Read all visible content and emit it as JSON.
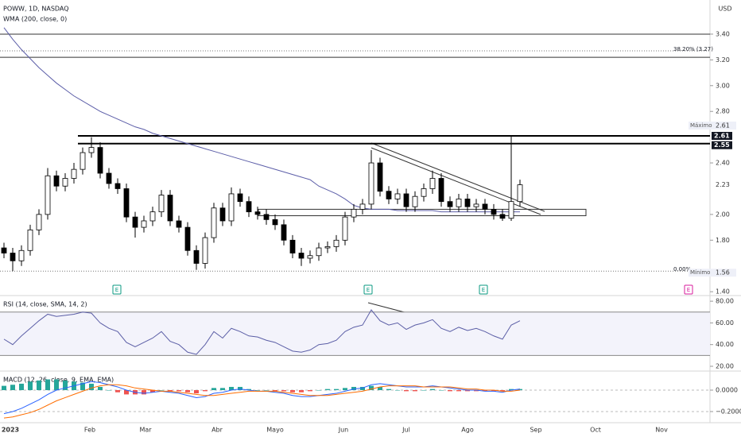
{
  "header": {
    "symbol": "POWW, 1D, NASDAQ",
    "currency": "USD"
  },
  "x_axis": {
    "labels": [
      "2023",
      "Feb",
      "Mar",
      "Abr",
      "Mayo",
      "Jun",
      "Jul",
      "Ago",
      "Sep",
      "Oct",
      "Nov"
    ]
  },
  "chart_data": [
    {
      "type": "candlestick",
      "indicator": "WMA (200, close, 0)",
      "up_color": "#ffffff",
      "down_color": "#000000",
      "open": [
        1.74,
        1.7,
        1.64,
        1.72,
        1.88,
        2.0,
        2.3,
        2.22,
        2.28,
        2.35,
        2.48,
        2.52,
        2.32,
        2.24,
        2.2,
        1.98,
        1.9,
        1.95,
        2.02,
        2.15,
        1.95,
        1.9,
        1.72,
        1.62,
        1.82,
        2.05,
        1.95,
        2.16,
        2.1,
        2.02,
        2.0,
        1.96,
        1.92,
        1.8,
        1.7,
        1.66,
        1.68,
        1.74,
        1.75,
        1.8,
        1.98,
        2.04,
        2.08,
        2.4,
        2.18,
        2.12,
        2.16,
        2.06,
        2.14,
        2.2,
        2.28,
        2.1,
        2.06,
        2.12,
        2.06,
        2.08,
        2.04,
        2.0,
        1.97,
        2.1
      ],
      "high": [
        1.78,
        1.74,
        1.76,
        1.92,
        2.04,
        2.36,
        2.34,
        2.32,
        2.4,
        2.52,
        2.6,
        2.56,
        2.36,
        2.28,
        2.24,
        2.02,
        1.99,
        2.06,
        2.19,
        2.19,
        1.99,
        1.94,
        1.76,
        1.86,
        2.09,
        2.09,
        2.21,
        2.2,
        2.14,
        2.06,
        2.04,
        2.0,
        1.96,
        1.84,
        1.74,
        1.72,
        1.78,
        1.79,
        1.84,
        2.02,
        2.08,
        2.12,
        2.5,
        2.44,
        2.22,
        2.2,
        2.2,
        2.18,
        2.24,
        2.34,
        2.32,
        2.14,
        2.16,
        2.16,
        2.12,
        2.12,
        2.08,
        2.04,
        2.61,
        2.27
      ],
      "low": [
        1.66,
        1.56,
        1.6,
        1.68,
        1.84,
        1.96,
        2.18,
        2.18,
        2.24,
        2.31,
        2.44,
        2.28,
        2.2,
        2.16,
        1.94,
        1.82,
        1.86,
        1.91,
        1.98,
        1.91,
        1.86,
        1.68,
        1.57,
        1.58,
        1.78,
        1.91,
        1.91,
        2.06,
        1.98,
        1.96,
        1.92,
        1.88,
        1.76,
        1.66,
        1.6,
        1.62,
        1.64,
        1.7,
        1.71,
        1.76,
        1.94,
        2.0,
        2.04,
        2.14,
        2.08,
        2.08,
        2.02,
        2.02,
        2.1,
        2.16,
        2.06,
        2.02,
        2.02,
        2.02,
        2.02,
        2.0,
        1.96,
        1.95,
        1.95,
        2.06
      ],
      "close": [
        1.7,
        1.64,
        1.72,
        1.88,
        2.0,
        2.3,
        2.22,
        2.28,
        2.35,
        2.48,
        2.52,
        2.32,
        2.24,
        2.2,
        1.98,
        1.9,
        1.95,
        2.02,
        2.15,
        1.95,
        1.9,
        1.72,
        1.62,
        1.82,
        2.05,
        1.95,
        2.16,
        2.1,
        2.02,
        2.0,
        1.96,
        1.92,
        1.8,
        1.7,
        1.66,
        1.68,
        1.74,
        1.75,
        1.8,
        1.98,
        2.04,
        2.08,
        2.4,
        2.18,
        2.12,
        2.16,
        2.06,
        2.14,
        2.2,
        2.28,
        2.1,
        2.06,
        2.12,
        2.06,
        2.08,
        2.04,
        2.0,
        1.97,
        2.1,
        2.23
      ],
      "wma": {
        "color": "#5c5ea8",
        "values": [
          3.45,
          3.36,
          3.28,
          3.21,
          3.14,
          3.08,
          3.02,
          2.97,
          2.92,
          2.88,
          2.84,
          2.8,
          2.77,
          2.74,
          2.71,
          2.68,
          2.66,
          2.63,
          2.61,
          2.59,
          2.57,
          2.55,
          2.53,
          2.51,
          2.49,
          2.47,
          2.45,
          2.43,
          2.41,
          2.39,
          2.37,
          2.35,
          2.33,
          2.31,
          2.29,
          2.27,
          2.22,
          2.19,
          2.16,
          2.12,
          2.07,
          2.05,
          2.04,
          2.04,
          2.04,
          2.03,
          2.03,
          2.03,
          2.03,
          2.03,
          2.02,
          2.02,
          2.02,
          2.02,
          2.02,
          2.02,
          2.02,
          2.02,
          2.02,
          2.02
        ]
      },
      "ylim": [
        1.37,
        3.665
      ],
      "yticks": [
        {
          "value": 1.4,
          "label": "1.40"
        },
        {
          "value": 1.8,
          "label": "1.80"
        },
        {
          "value": 2.0,
          "label": "2.00"
        },
        {
          "value": 2.4,
          "label": "2.40"
        },
        {
          "value": 2.8,
          "label": "2.80"
        },
        {
          "value": 3.0,
          "label": "3.00"
        },
        {
          "value": 3.2,
          "label": "3.20"
        },
        {
          "value": 3.4,
          "label": "3.40"
        }
      ],
      "thin_lines": [
        3.4,
        3.22
      ],
      "zone": [
        2.61,
        2.55
      ],
      "range_box": [
        2.04,
        1.99
      ],
      "fib_levels": [
        {
          "label": "38.20% (3.27)",
          "value": 3.27
        },
        {
          "label": "0.00%",
          "value": 1.56
        }
      ],
      "extremes": [
        {
          "label": "Máximo",
          "value": 2.61
        },
        {
          "label": "Mínimo",
          "value": 1.56
        }
      ],
      "last_price": 2.23,
      "events": [
        "E",
        "E",
        "E",
        "E"
      ]
    },
    {
      "type": "line",
      "title": "RSI (14, close, SMA, 14, 2)",
      "color": "#5b5ea6",
      "values": [
        45,
        40,
        48,
        55,
        62,
        68,
        66,
        67,
        68,
        70,
        69,
        60,
        55,
        52,
        42,
        38,
        42,
        46,
        52,
        43,
        40,
        33,
        31,
        40,
        52,
        46,
        55,
        52,
        48,
        47,
        44,
        42,
        38,
        34,
        33,
        35,
        40,
        41,
        44,
        52,
        56,
        58,
        72,
        62,
        58,
        60,
        54,
        58,
        60,
        63,
        55,
        52,
        56,
        53,
        55,
        52,
        48,
        45,
        58,
        62
      ],
      "bands": [
        70,
        30
      ],
      "ylim": [
        15.6,
        85.2
      ],
      "yticks": [
        {
          "value": 80,
          "label": "80.00"
        },
        {
          "value": 60,
          "label": "60.00"
        },
        {
          "value": 40,
          "label": "40.00"
        },
        {
          "value": 20,
          "label": "20.00"
        }
      ]
    },
    {
      "type": "macd",
      "title": "MACD (12, 26, close, 9, EMA, EMA)",
      "series": [
        {
          "name": "MACD",
          "color": "#2962ff",
          "values": [
            -0.22,
            -0.2,
            -0.17,
            -0.13,
            -0.09,
            -0.04,
            0.0,
            0.02,
            0.04,
            0.06,
            0.08,
            0.07,
            0.05,
            0.03,
            0.0,
            -0.02,
            -0.03,
            -0.02,
            -0.01,
            -0.02,
            -0.03,
            -0.05,
            -0.07,
            -0.06,
            -0.03,
            -0.02,
            0.0,
            0.01,
            0.0,
            -0.01,
            -0.01,
            -0.02,
            -0.03,
            -0.05,
            -0.06,
            -0.06,
            -0.05,
            -0.04,
            -0.03,
            -0.01,
            0.01,
            0.02,
            0.05,
            0.06,
            0.05,
            0.04,
            0.03,
            0.03,
            0.03,
            0.04,
            0.03,
            0.02,
            0.01,
            0.0,
            0.0,
            -0.01,
            -0.01,
            -0.02,
            0.0,
            0.01
          ]
        },
        {
          "name": "Signal",
          "color": "#ff6d00",
          "values": [
            -0.26,
            -0.25,
            -0.23,
            -0.21,
            -0.18,
            -0.14,
            -0.1,
            -0.07,
            -0.04,
            -0.01,
            0.02,
            0.04,
            0.05,
            0.05,
            0.04,
            0.02,
            0.01,
            0.0,
            -0.01,
            -0.01,
            -0.02,
            -0.03,
            -0.04,
            -0.05,
            -0.05,
            -0.04,
            -0.03,
            -0.02,
            -0.01,
            -0.01,
            -0.01,
            -0.01,
            -0.02,
            -0.03,
            -0.04,
            -0.05,
            -0.05,
            -0.05,
            -0.04,
            -0.03,
            -0.02,
            -0.01,
            0.01,
            0.03,
            0.04,
            0.04,
            0.04,
            0.04,
            0.03,
            0.03,
            0.03,
            0.03,
            0.02,
            0.01,
            0.01,
            0.0,
            0.0,
            -0.01,
            -0.01,
            0.0
          ]
        }
      ],
      "histogram": {
        "up_color": "#26a69a",
        "down_color": "#ef5350",
        "values": [
          0.04,
          0.05,
          0.06,
          0.08,
          0.09,
          0.1,
          0.1,
          0.09,
          0.08,
          0.07,
          0.06,
          0.03,
          0.0,
          -0.02,
          -0.04,
          -0.04,
          -0.04,
          -0.02,
          0.0,
          -0.01,
          -0.01,
          -0.02,
          -0.03,
          -0.01,
          0.02,
          0.02,
          0.03,
          0.03,
          0.01,
          0.0,
          0.0,
          -0.01,
          -0.01,
          -0.02,
          -0.02,
          -0.01,
          0.0,
          0.01,
          0.01,
          0.02,
          0.03,
          0.03,
          0.04,
          0.03,
          0.01,
          0.0,
          -0.01,
          -0.01,
          0.0,
          0.01,
          0.0,
          -0.01,
          -0.01,
          -0.01,
          -0.01,
          -0.01,
          -0.01,
          -0.01,
          0.01,
          0.01
        ]
      },
      "ylim": [
        -0.304,
        0.178
      ],
      "yticks": [
        {
          "value": 0,
          "label": "0.0000"
        },
        {
          "value": -0.2,
          "label": "−0.2000"
        }
      ]
    }
  ]
}
